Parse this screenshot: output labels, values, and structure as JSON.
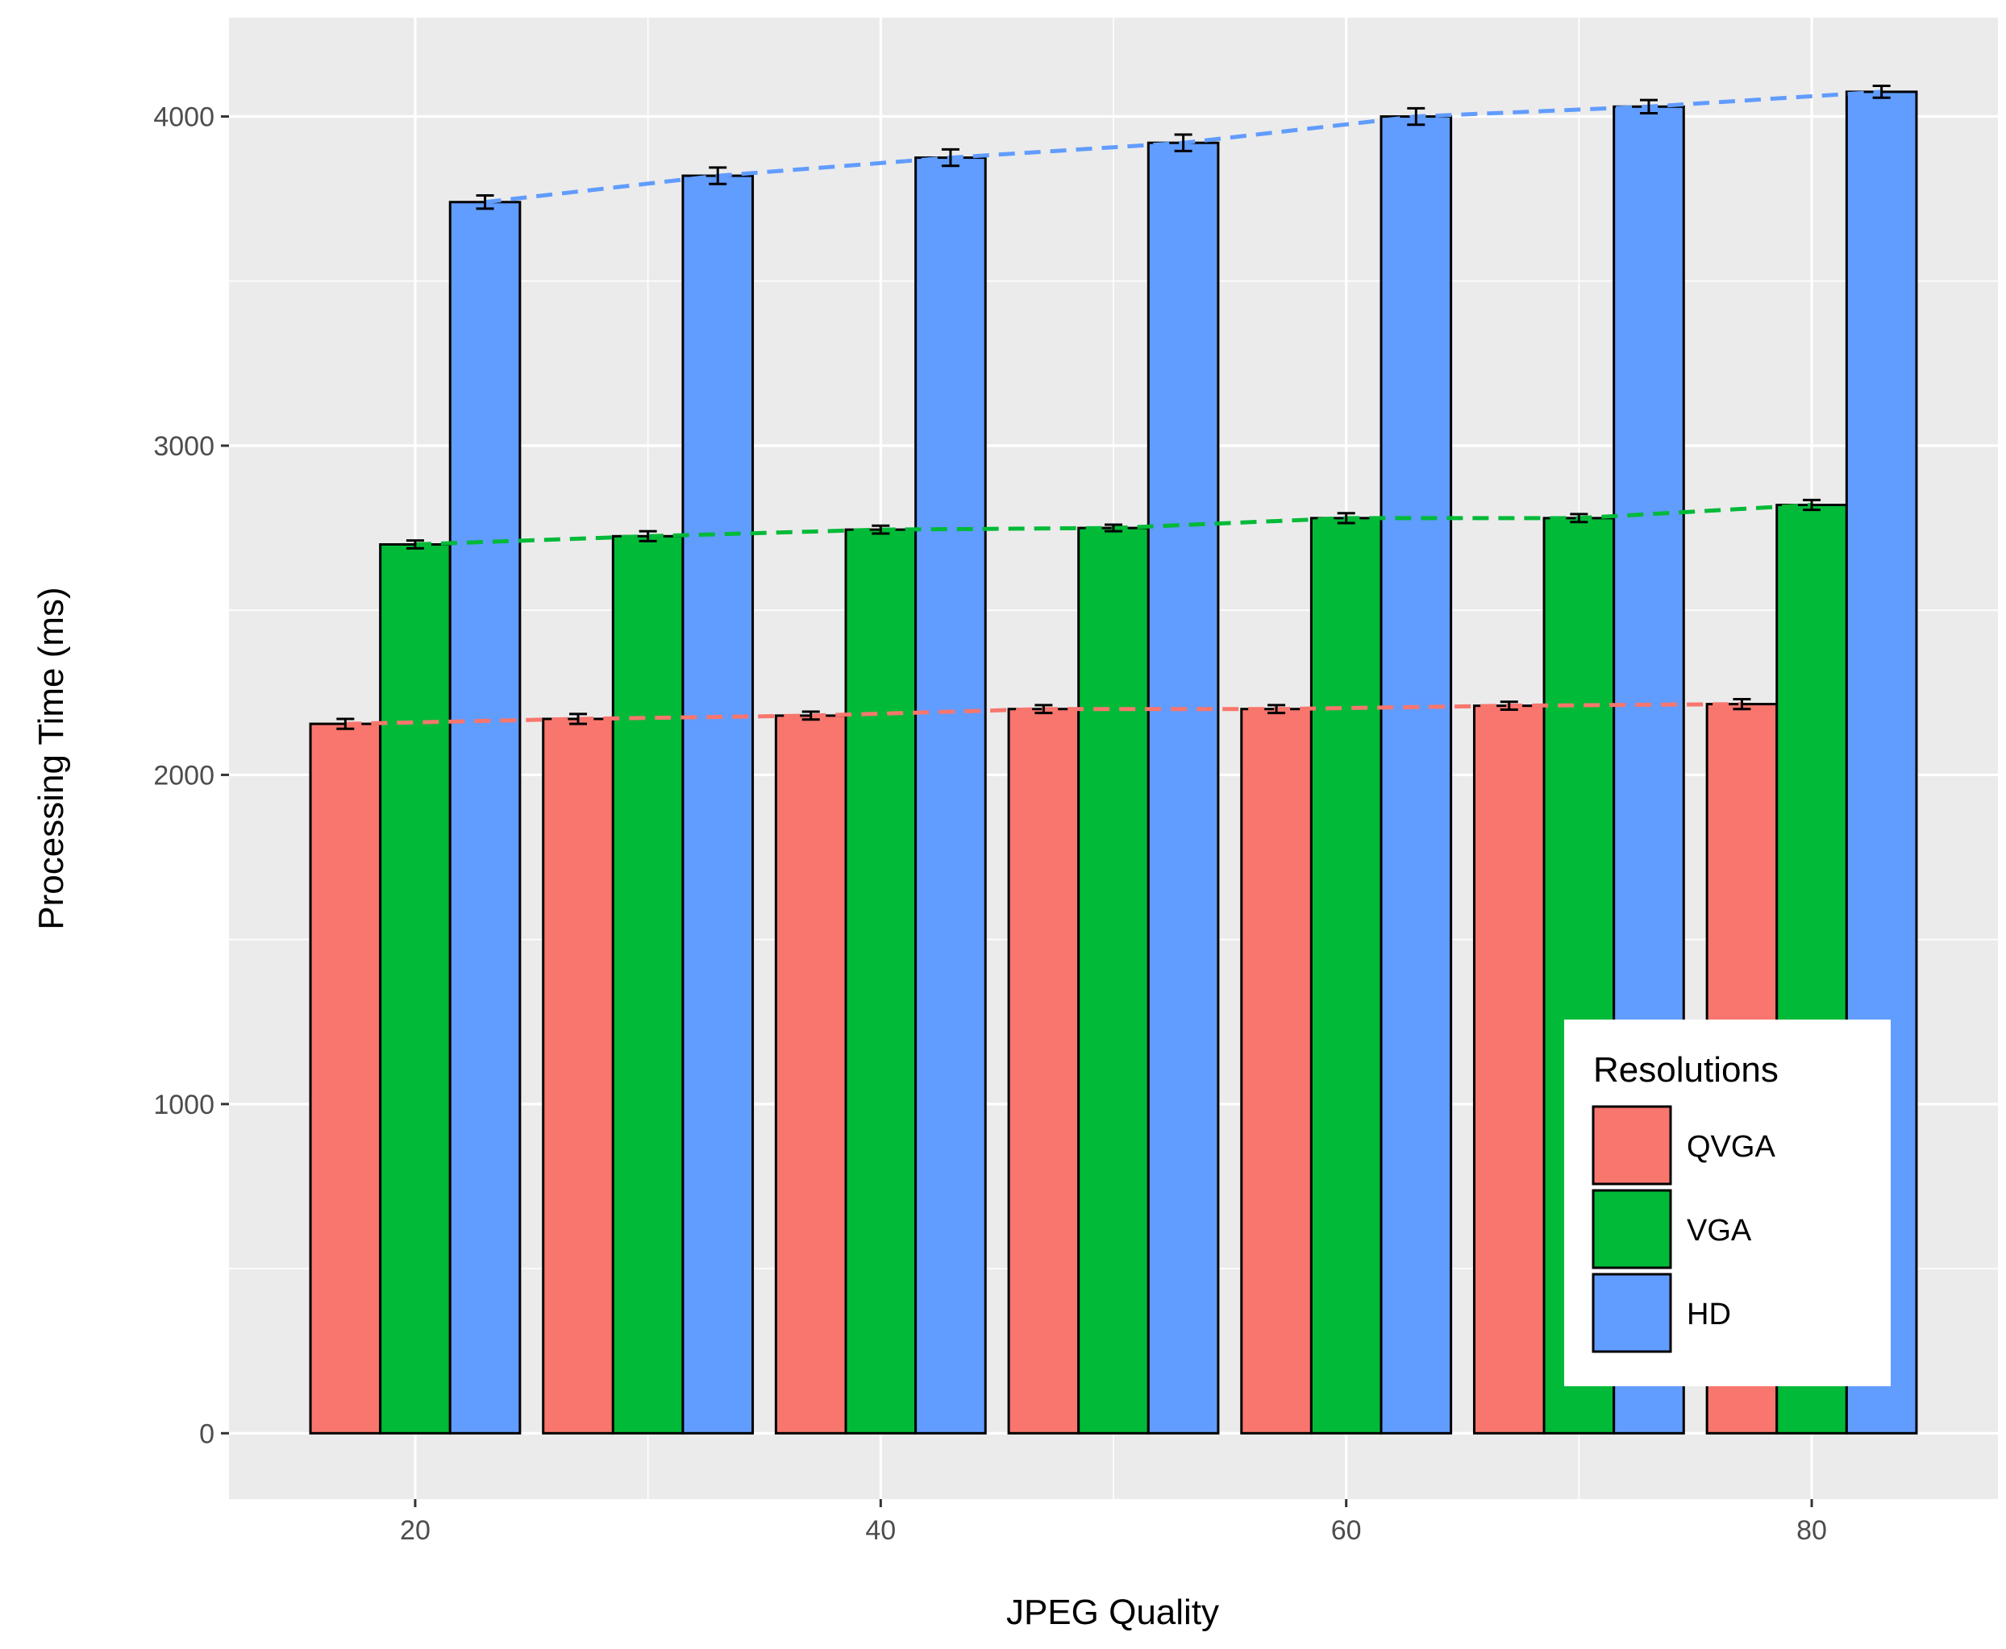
{
  "chart_data": {
    "type": "bar",
    "title": "",
    "xlabel": "JPEG Quality",
    "ylabel": "Processing Time (ms)",
    "x": [
      20,
      30,
      40,
      50,
      60,
      70,
      80
    ],
    "xlim": [
      12,
      88
    ],
    "ylim": [
      -200,
      4300
    ],
    "xticks": [
      20,
      40,
      60,
      80
    ],
    "yticks": [
      0,
      1000,
      2000,
      3000,
      4000
    ],
    "grid": true,
    "legend": {
      "title": "Resolutions",
      "position": "bottom-right"
    },
    "series": [
      {
        "name": "QVGA",
        "color": "#F8766D",
        "values": [
          2155,
          2170,
          2180,
          2200,
          2200,
          2210,
          2215
        ],
        "errors": [
          15,
          15,
          12,
          12,
          12,
          12,
          15
        ]
      },
      {
        "name": "VGA",
        "color": "#00BA38",
        "values": [
          2700,
          2725,
          2745,
          2750,
          2780,
          2780,
          2820
        ],
        "errors": [
          12,
          15,
          12,
          10,
          15,
          12,
          15
        ]
      },
      {
        "name": "HD",
        "color": "#619CFF",
        "values": [
          3740,
          3820,
          3875,
          3920,
          4000,
          4030,
          4075
        ],
        "errors": [
          20,
          25,
          25,
          25,
          25,
          20,
          18
        ]
      }
    ]
  }
}
